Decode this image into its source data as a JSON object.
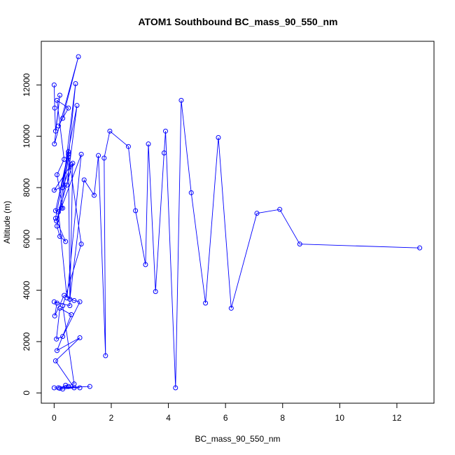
{
  "chart_data": {
    "type": "scatter",
    "title": "ATOM1 Southbound BC_mass_90_550_nm",
    "xlabel": "BC_mass_90_550_nm",
    "ylabel": "Altitude (m)",
    "xlim": [
      -0.45,
      13.3
    ],
    "ylim": [
      -400,
      13700
    ],
    "xticks": [
      0,
      2,
      4,
      6,
      8,
      10,
      12
    ],
    "yticks": [
      0,
      2000,
      4000,
      6000,
      8000,
      10000,
      12000
    ],
    "xtick_labels": [
      "0",
      "2",
      "4",
      "6",
      "8",
      "10",
      "12"
    ],
    "ytick_labels": [
      "0",
      "2000",
      "4000",
      "6000",
      "8000",
      "10000",
      "12000"
    ],
    "grid": false,
    "line_color": "#0000ff",
    "marker": "open-circle",
    "series": [
      {
        "x": [
          0.0,
          0.02,
          0.05,
          0.2,
          0.01,
          0.85,
          0.3,
          0.15,
          0.5,
          0.1,
          0.35,
          0.1,
          0.3,
          0.05,
          0.5,
          0.1,
          0.2,
          0.4,
          0.05,
          0.8,
          0.45,
          0.0,
          0.6,
          0.3,
          0.75,
          0.5,
          0.25,
          0.15,
          0.45,
          0.95,
          0.08,
          0.65,
          0.55,
          0.0,
          0.1,
          0.02,
          0.35,
          0.7,
          0.9,
          0.3,
          0.08,
          0.2,
          0.6,
          0.1,
          0.9,
          0.05,
          0.7,
          0.3,
          0.15,
          1.25,
          0.0,
          0.9,
          0.5,
          0.4,
          0.2,
          0.7,
          0.3,
          0.95,
          0.5,
          0.55,
          1.05,
          1.4,
          1.55,
          1.8,
          1.75,
          1.95,
          2.6,
          2.85,
          3.2,
          3.3,
          3.55,
          3.85,
          3.9,
          4.25,
          4.45,
          4.8,
          5.3,
          5.75,
          6.2,
          7.1,
          7.9,
          8.6,
          12.8
        ],
        "y": [
          12000,
          11100,
          10200,
          11600,
          9700,
          13100,
          10700,
          10400,
          11100,
          11400,
          9100,
          8500,
          7200,
          7100,
          9400,
          6500,
          6100,
          5900,
          6800,
          11200,
          8100,
          7900,
          8900,
          8000,
          12050,
          9200,
          7200,
          7050,
          3700,
          9300,
          6700,
          8950,
          3400,
          3550,
          3500,
          3000,
          3800,
          3600,
          3550,
          2200,
          2100,
          3300,
          3050,
          1650,
          2150,
          1250,
          200,
          150,
          200,
          250,
          200,
          200,
          250,
          300,
          180,
          350,
          3400,
          5800,
          9300,
          3650,
          8300,
          7700,
          9250,
          1450,
          9150,
          10200,
          9600,
          7100,
          5000,
          9700,
          3950,
          9350,
          10200,
          200,
          11400,
          7800,
          3500,
          9950,
          3300,
          7000,
          7150,
          5800,
          5650
        ]
      }
    ]
  }
}
